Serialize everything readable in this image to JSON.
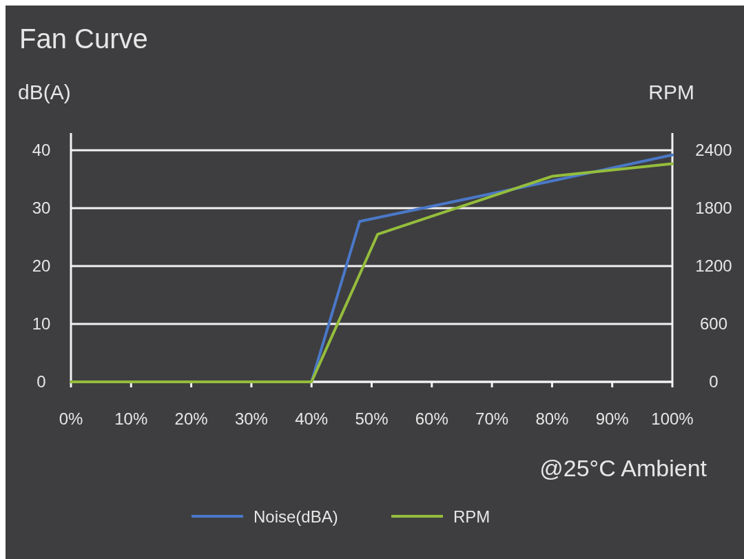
{
  "chart_data": {
    "type": "line",
    "title": "Fan Curve",
    "ylabel": "dB(A)",
    "y2label": "RPM",
    "annotations": [
      "@25°C Ambient"
    ],
    "series": [
      {
        "name": "Noise(dBA)",
        "color": "#4a78c8",
        "x": [
          0,
          40,
          48,
          80,
          100
        ],
        "values": [
          0,
          0,
          27.7,
          34.7,
          39.2
        ]
      },
      {
        "name": "RPM",
        "color": "#95bd3c",
        "axis": "y2",
        "x": [
          0,
          40,
          51,
          80,
          100
        ],
        "values": [
          0,
          0,
          1530,
          2130,
          2260
        ]
      }
    ],
    "xlim": [
      0,
      100
    ],
    "xticks": [
      {
        "value": 0,
        "label": "0%"
      },
      {
        "value": 10,
        "label": "10%"
      },
      {
        "value": 20,
        "label": "20%"
      },
      {
        "value": 30,
        "label": "30%"
      },
      {
        "value": 40,
        "label": "40%"
      },
      {
        "value": 50,
        "label": "50%"
      },
      {
        "value": 60,
        "label": "60%"
      },
      {
        "value": 70,
        "label": "70%"
      },
      {
        "value": 80,
        "label": "80%"
      },
      {
        "value": 90,
        "label": "90%"
      },
      {
        "value": 100,
        "label": "100%"
      }
    ],
    "ylim": [
      0,
      40
    ],
    "yticks": [
      0,
      10,
      20,
      30,
      40
    ],
    "y2lim": [
      0,
      2400
    ],
    "y2ticks": [
      0,
      600,
      1200,
      1800,
      2400
    ],
    "grid": "y",
    "legend": "bottom",
    "marker": "none",
    "line_style": "solid"
  }
}
